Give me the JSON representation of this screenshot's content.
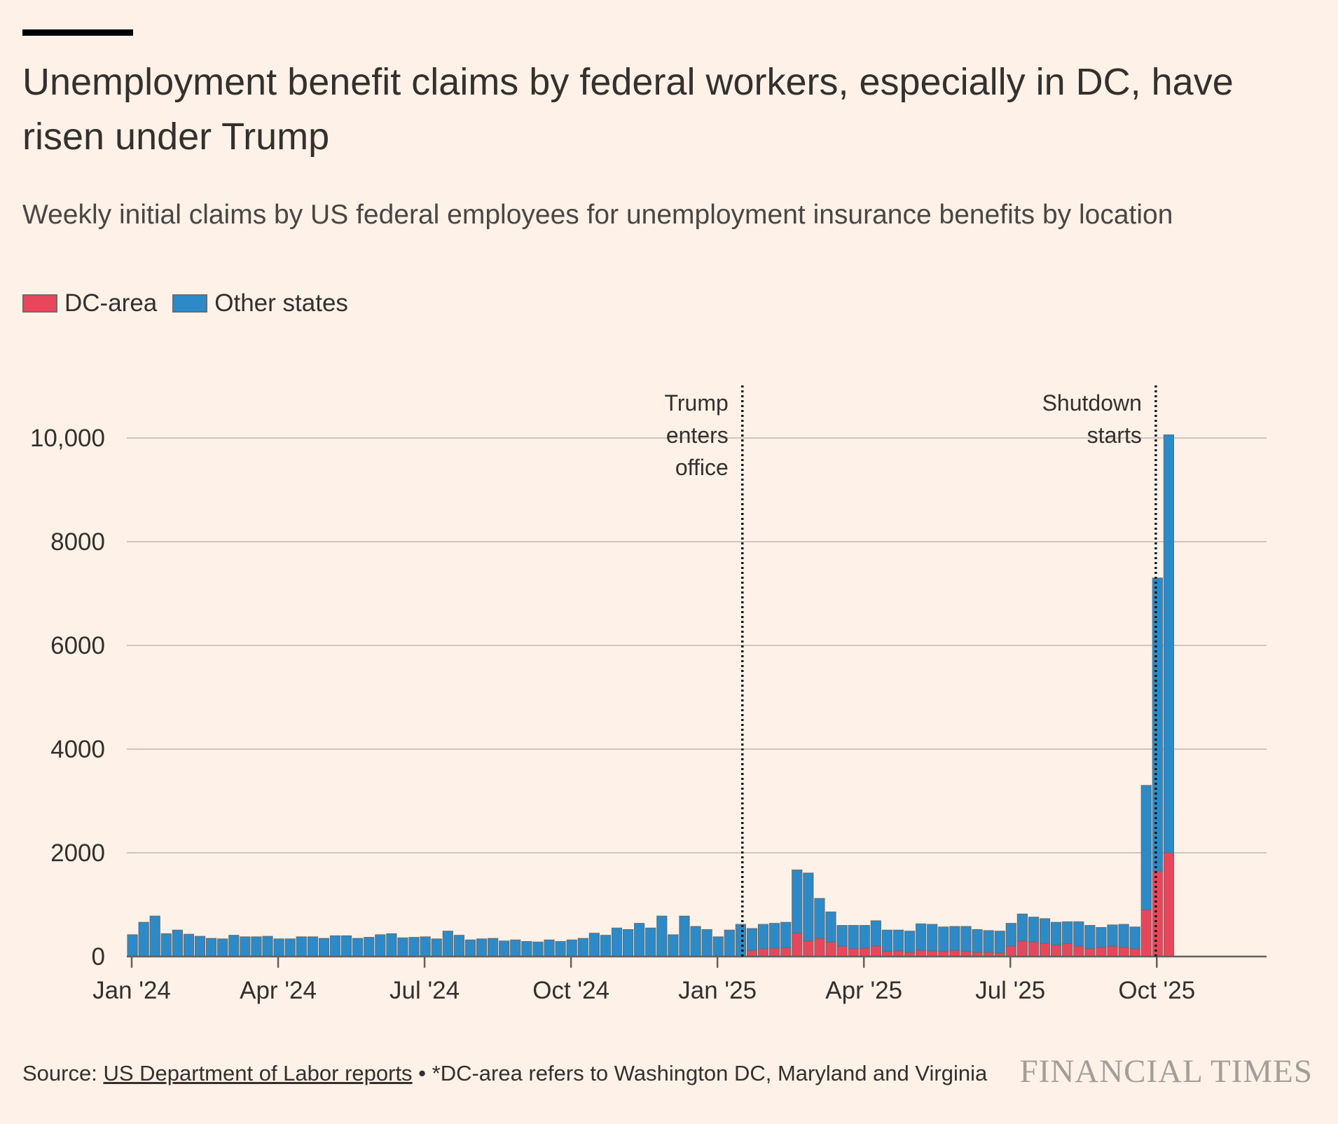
{
  "header": {
    "title": "Unemployment benefit claims by federal workers, especially in DC, have risen under Trump",
    "subtitle": "Weekly initial claims by US federal employees for unemployment insurance benefits by location"
  },
  "legend": {
    "dc_label": "DC-area",
    "other_label": "Other states"
  },
  "colors": {
    "dc": "#e9455b",
    "other": "#2b8bc8",
    "bar_stroke": "#6b6b6b",
    "gridline": "#cfc6bf",
    "axis": "#66605c",
    "background": "#fdf1e8"
  },
  "chart_data": {
    "type": "bar",
    "stacked": true,
    "title": "Weekly initial claims by US federal employees for unemployment insurance benefits by location",
    "xlabel": "",
    "ylabel": "",
    "ylim": [
      0,
      10000
    ],
    "yticks": [
      0,
      2000,
      4000,
      6000,
      8000,
      10000
    ],
    "ytick_labels": [
      "0",
      "2000",
      "4000",
      "6000",
      "8000",
      "10,000"
    ],
    "x_start_week": 0,
    "xticks": [
      {
        "week": 0,
        "label": "Jan '24"
      },
      {
        "week": 13,
        "label": "Apr '24"
      },
      {
        "week": 26,
        "label": "Jul '24"
      },
      {
        "week": 39,
        "label": "Oct '24"
      },
      {
        "week": 52,
        "label": "Jan '25"
      },
      {
        "week": 65,
        "label": "Apr '25"
      },
      {
        "week": 78,
        "label": "Jul '25"
      },
      {
        "week": 91,
        "label": "Oct '25"
      }
    ],
    "series": [
      {
        "name": "DC-area",
        "values": [
          0,
          0,
          0,
          0,
          0,
          0,
          0,
          0,
          0,
          0,
          0,
          0,
          0,
          0,
          0,
          0,
          0,
          0,
          0,
          0,
          0,
          0,
          0,
          0,
          0,
          0,
          0,
          0,
          0,
          0,
          0,
          0,
          0,
          0,
          0,
          0,
          0,
          0,
          0,
          0,
          0,
          0,
          0,
          0,
          0,
          0,
          0,
          0,
          0,
          0,
          0,
          0,
          0,
          0,
          0,
          120,
          150,
          160,
          170,
          450,
          300,
          350,
          280,
          200,
          150,
          160,
          200,
          100,
          110,
          80,
          120,
          110,
          100,
          120,
          100,
          80,
          80,
          70,
          200,
          300,
          280,
          250,
          220,
          250,
          200,
          150,
          180,
          200,
          180,
          150,
          900,
          1650,
          2000
        ]
      },
      {
        "name": "Other states",
        "values": [
          420,
          660,
          780,
          440,
          510,
          430,
          390,
          350,
          340,
          410,
          380,
          380,
          390,
          340,
          340,
          380,
          380,
          350,
          400,
          400,
          350,
          370,
          420,
          440,
          360,
          370,
          380,
          340,
          490,
          410,
          320,
          340,
          350,
          300,
          320,
          290,
          280,
          320,
          290,
          320,
          350,
          450,
          410,
          550,
          520,
          640,
          550,
          780,
          420,
          780,
          580,
          520,
          380,
          510,
          620,
          420,
          470,
          480,
          490,
          1220,
          1310,
          770,
          580,
          400,
          450,
          440,
          490,
          410,
          400,
          410,
          510,
          510,
          470,
          460,
          480,
          440,
          420,
          420,
          440,
          520,
          480,
          480,
          440,
          420,
          470,
          450,
          380,
          410,
          440,
          420,
          2400,
          5650,
          8060
        ]
      }
    ],
    "annotations": [
      {
        "week": 54.65,
        "lines": [
          "Trump",
          "enters",
          "office"
        ]
      },
      {
        "week": 91.35,
        "lines": [
          "Shutdown",
          "starts"
        ]
      }
    ]
  },
  "footer": {
    "source_prefix": "Source: ",
    "source_link": "US Department of Labor reports",
    "source_note": " • *DC-area refers to Washington DC, Maryland and Virginia",
    "brand": "FINANCIAL TIMES"
  }
}
